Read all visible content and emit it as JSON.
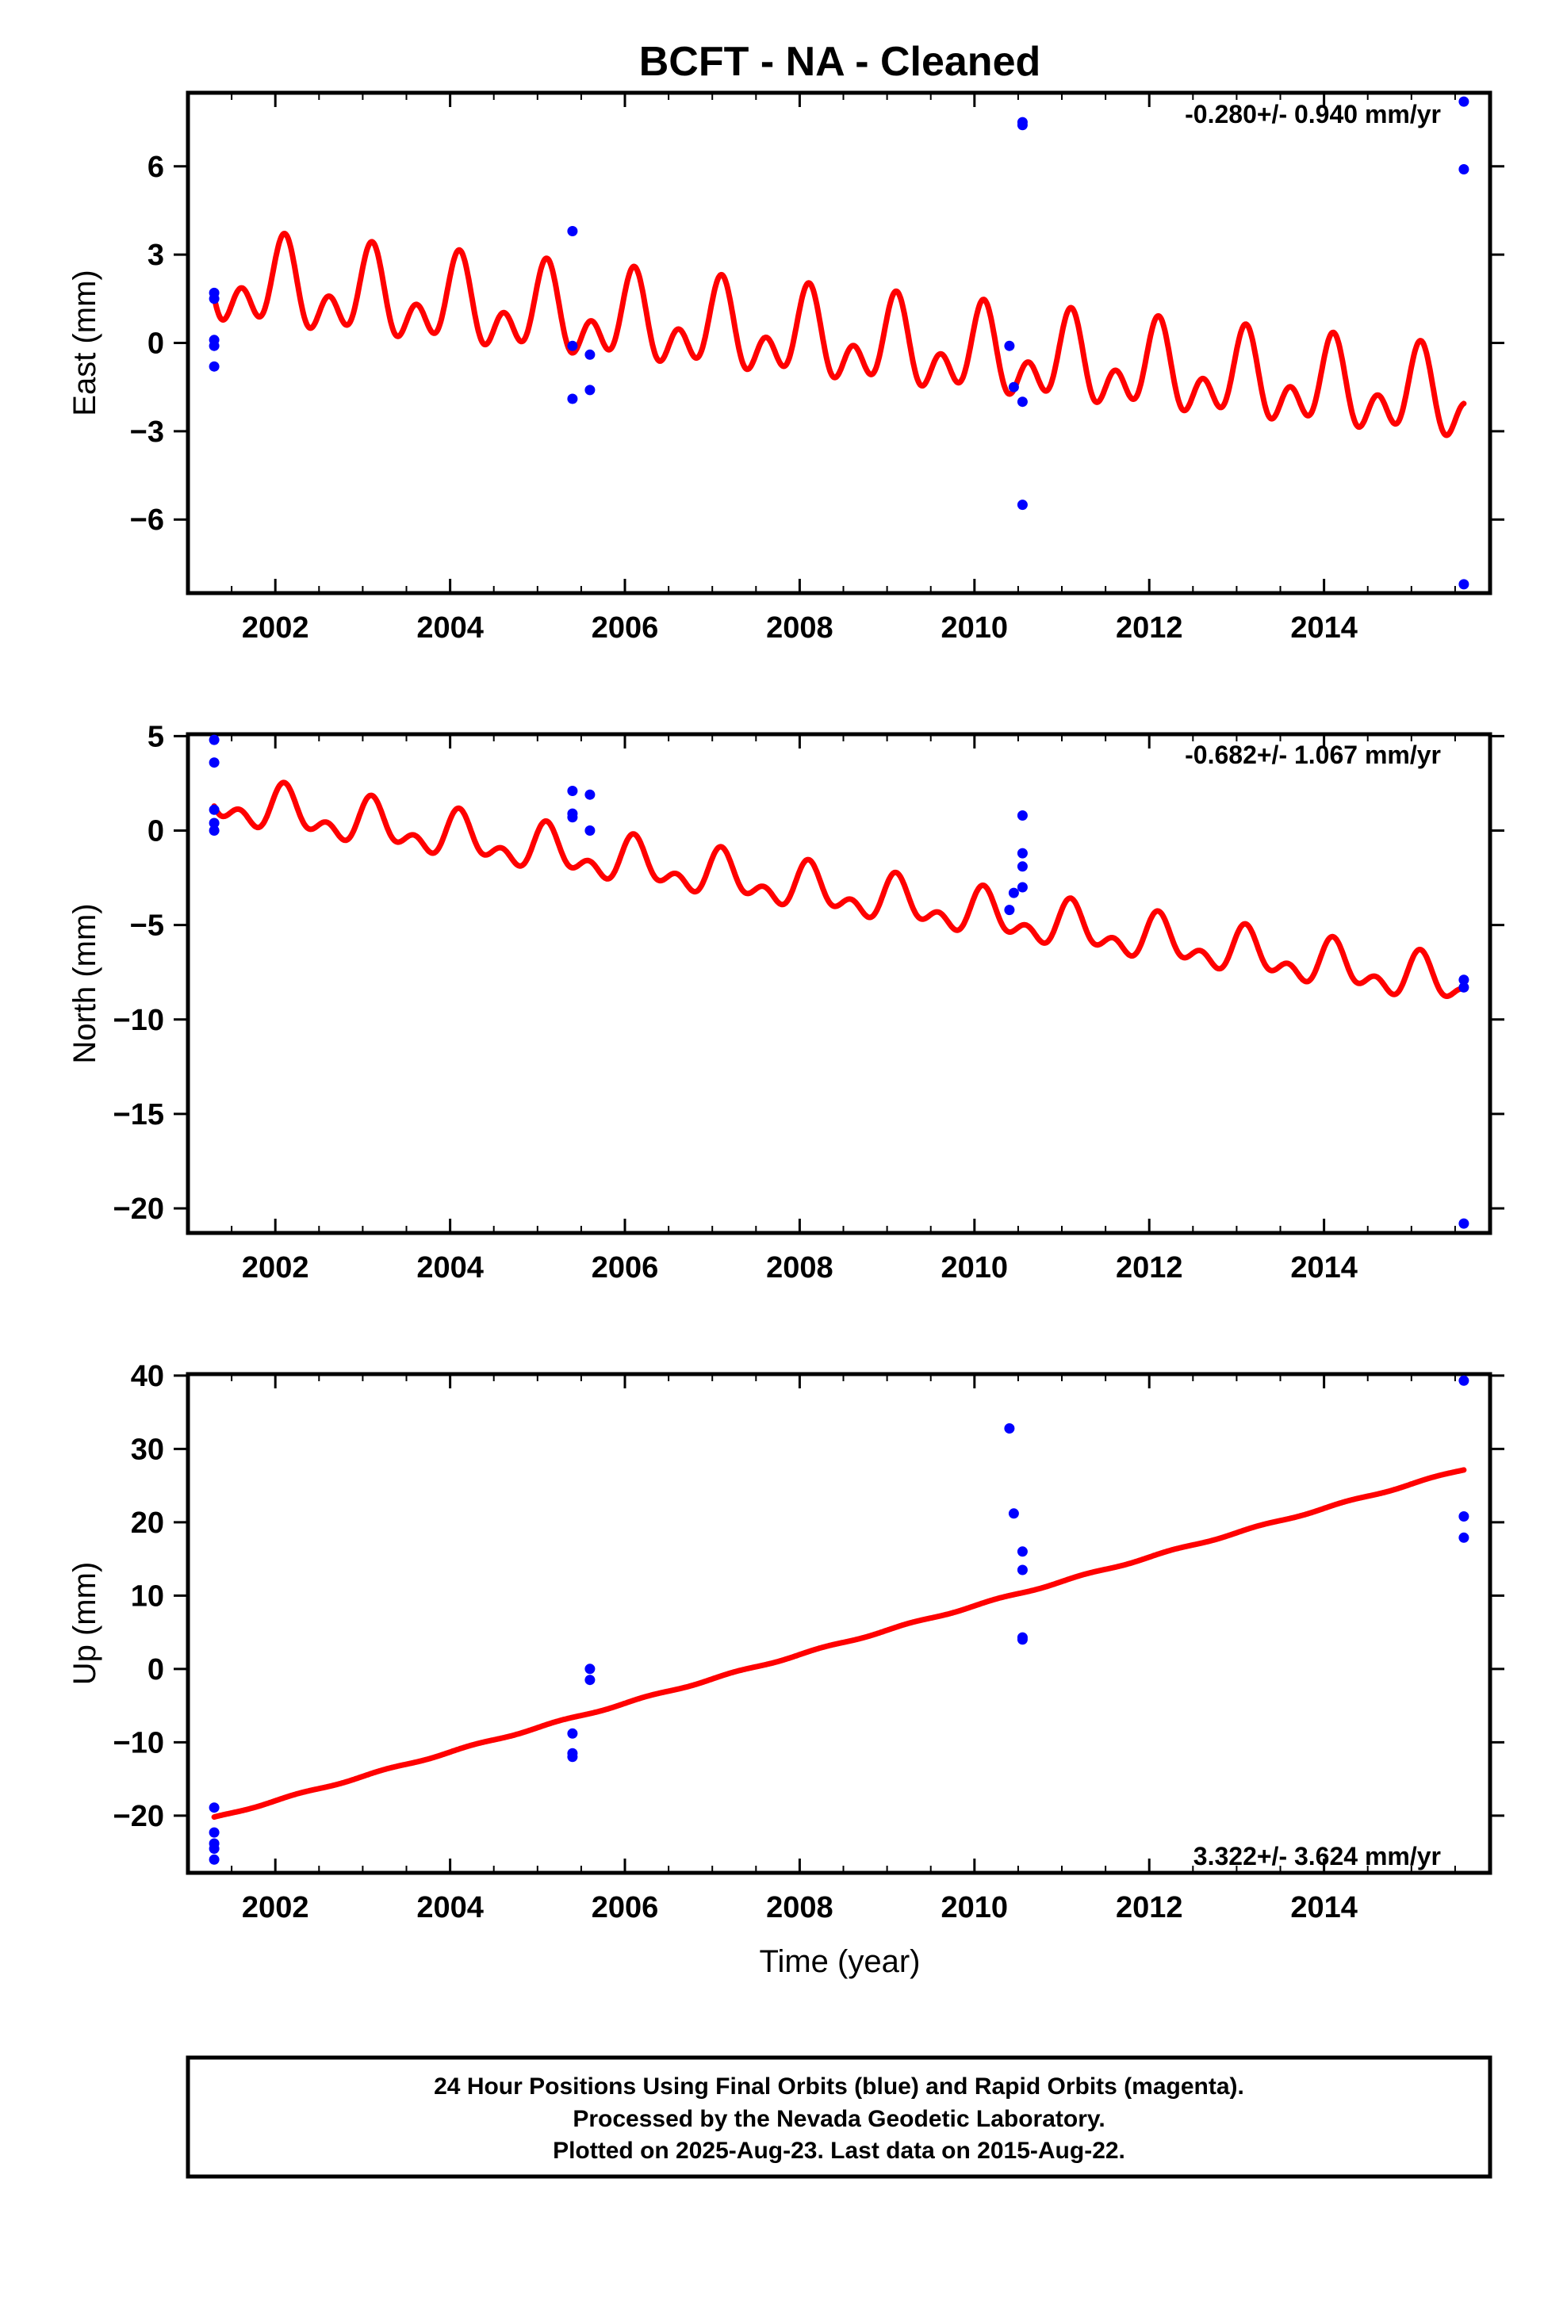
{
  "title": "BCFT  - NA - Cleaned",
  "xlabel": "Time (year)",
  "colors": {
    "final_points": "#0000ff",
    "model_line": "#ff0000",
    "frame": "#000000"
  },
  "x_ticks": [
    "2002",
    "2004",
    "2006",
    "2008",
    "2010",
    "2012",
    "2014"
  ],
  "chart_data": [
    {
      "type": "scatter",
      "component": "east",
      "ylabel": "East (mm)",
      "rate": "-0.280+/- 0.940 mm/yr",
      "xlim": [
        2001.0,
        2015.9
      ],
      "ylim": [
        -8.5,
        8.5
      ],
      "y_ticks": [
        "6",
        "3",
        "0",
        "−3",
        "−6"
      ],
      "y_tick_values": [
        6,
        3,
        0,
        -3,
        -6
      ],
      "points": [
        {
          "x": 2001.3,
          "y": 1.7
        },
        {
          "x": 2001.3,
          "y": 1.5
        },
        {
          "x": 2001.3,
          "y": 0.1
        },
        {
          "x": 2001.3,
          "y": -0.1
        },
        {
          "x": 2001.3,
          "y": -0.8
        },
        {
          "x": 2005.4,
          "y": 3.8
        },
        {
          "x": 2005.4,
          "y": -0.1
        },
        {
          "x": 2005.4,
          "y": -1.9
        },
        {
          "x": 2005.6,
          "y": -0.4
        },
        {
          "x": 2005.6,
          "y": -1.6
        },
        {
          "x": 2010.4,
          "y": -0.1
        },
        {
          "x": 2010.45,
          "y": -1.5
        },
        {
          "x": 2010.55,
          "y": 7.4
        },
        {
          "x": 2010.55,
          "y": 7.5
        },
        {
          "x": 2010.55,
          "y": -2.0
        },
        {
          "x": 2010.55,
          "y": -5.5
        },
        {
          "x": 2015.6,
          "y": 8.2
        },
        {
          "x": 2015.6,
          "y": 5.9
        },
        {
          "x": 2015.6,
          "y": -8.2
        }
      ],
      "model": {
        "t0": 2001.3,
        "t1": 2015.6,
        "a": 2.0,
        "b": -0.28,
        "ann": 1.0,
        "ann_phase": 1.0,
        "semi": 0.95,
        "semi_phase": 0.2
      }
    },
    {
      "type": "scatter",
      "component": "north",
      "ylabel": "North (mm)",
      "rate": "-0.682+/- 1.067 mm/yr",
      "xlim": [
        2001.0,
        2015.9
      ],
      "ylim": [
        -21.3,
        5.1
      ],
      "y_ticks": [
        "5",
        "0",
        "−5",
        "−10",
        "−15",
        "−20"
      ],
      "y_tick_values": [
        5,
        0,
        -5,
        -10,
        -15,
        -20
      ],
      "points": [
        {
          "x": 2001.3,
          "y": 4.8
        },
        {
          "x": 2001.3,
          "y": 3.6
        },
        {
          "x": 2001.3,
          "y": 1.1
        },
        {
          "x": 2001.3,
          "y": 0.4
        },
        {
          "x": 2001.3,
          "y": 0.0
        },
        {
          "x": 2005.4,
          "y": 2.1
        },
        {
          "x": 2005.4,
          "y": 0.9
        },
        {
          "x": 2005.4,
          "y": 0.7
        },
        {
          "x": 2005.6,
          "y": 1.9
        },
        {
          "x": 2005.6,
          "y": 0.0
        },
        {
          "x": 2010.4,
          "y": -4.2
        },
        {
          "x": 2010.45,
          "y": -3.3
        },
        {
          "x": 2010.55,
          "y": 0.8
        },
        {
          "x": 2010.55,
          "y": -1.2
        },
        {
          "x": 2010.55,
          "y": -1.9
        },
        {
          "x": 2010.55,
          "y": -3.0
        },
        {
          "x": 2015.6,
          "y": -7.9
        },
        {
          "x": 2015.6,
          "y": -8.3
        },
        {
          "x": 2015.6,
          "y": -20.8
        }
      ],
      "model": {
        "t0": 2001.3,
        "t1": 2015.6,
        "a": 1.5,
        "b": -0.68,
        "ann": 0.9,
        "ann_phase": 0.8,
        "semi": 0.7,
        "semi_phase": 0.4
      }
    },
    {
      "type": "scatter",
      "component": "up",
      "ylabel": "Up (mm)",
      "rate": "3.322+/- 3.624 mm/yr",
      "xlim": [
        2001.0,
        2015.9
      ],
      "ylim": [
        -27.8,
        40.2
      ],
      "y_ticks": [
        "40",
        "30",
        "20",
        "10",
        "0",
        "−10",
        "−20"
      ],
      "y_tick_values": [
        40,
        30,
        20,
        10,
        0,
        -10,
        -20
      ],
      "points": [
        {
          "x": 2001.3,
          "y": -18.9
        },
        {
          "x": 2001.3,
          "y": -22.3
        },
        {
          "x": 2001.3,
          "y": -23.8
        },
        {
          "x": 2001.3,
          "y": -24.5
        },
        {
          "x": 2001.3,
          "y": -26.0
        },
        {
          "x": 2005.4,
          "y": -8.8
        },
        {
          "x": 2005.4,
          "y": -11.5
        },
        {
          "x": 2005.4,
          "y": -12.0
        },
        {
          "x": 2005.6,
          "y": 0.0
        },
        {
          "x": 2005.6,
          "y": -1.5
        },
        {
          "x": 2010.4,
          "y": 32.8
        },
        {
          "x": 2010.45,
          "y": 21.2
        },
        {
          "x": 2010.55,
          "y": 16.0
        },
        {
          "x": 2010.55,
          "y": 13.5
        },
        {
          "x": 2010.55,
          "y": 4.3
        },
        {
          "x": 2010.55,
          "y": 4.0
        },
        {
          "x": 2015.6,
          "y": 39.3
        },
        {
          "x": 2015.6,
          "y": 20.8
        },
        {
          "x": 2015.6,
          "y": 17.9
        }
      ],
      "model": {
        "t0": 2001.3,
        "t1": 2015.6,
        "a": -20.3,
        "b": 3.322,
        "ann": 0.12,
        "ann_phase": 0.0,
        "semi": 0.0,
        "semi_phase": 0.0
      }
    }
  ],
  "footer": {
    "line1": "24 Hour Positions Using Final Orbits (blue) and Rapid Orbits (magenta).",
    "line2": "Processed by the Nevada Geodetic Laboratory.",
    "line3": "Plotted on 2025-Aug-23. Last data on 2015-Aug-22."
  }
}
